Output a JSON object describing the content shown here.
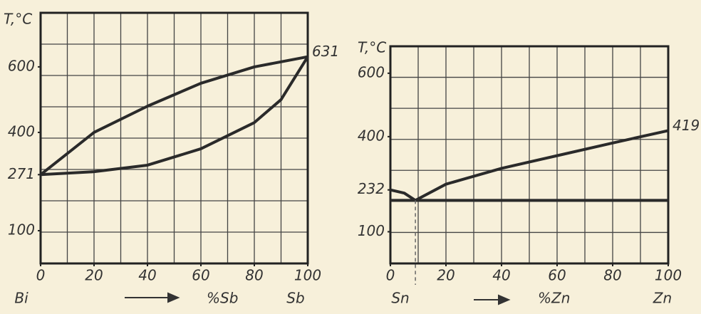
{
  "chart_data": [
    {
      "type": "line",
      "y_label": "T,°C",
      "x_label": "%Sb",
      "components": [
        "Bi",
        "Sb"
      ],
      "annotations": [
        "631"
      ],
      "xlim": [
        0,
        100
      ],
      "xticks": [
        0,
        20,
        40,
        60,
        80,
        100
      ],
      "ylim": [
        0,
        765
      ],
      "yticks": [
        100,
        271,
        400,
        600
      ],
      "grid": true,
      "color": "#2a2a2a",
      "series": [
        {
          "x": [
            0,
            20,
            40,
            60,
            80,
            100
          ],
          "values": [
            271,
            400,
            480,
            550,
            600,
            631
          ]
        },
        {
          "x": [
            0,
            20,
            40,
            60,
            80,
            90,
            100
          ],
          "values": [
            271,
            280,
            300,
            350,
            430,
            500,
            631
          ]
        }
      ]
    },
    {
      "type": "line",
      "y_label": "T,°C",
      "x_label": "%Zn",
      "components": [
        "Sn",
        "Zn"
      ],
      "annotations": [
        "419"
      ],
      "xlim": [
        0,
        100
      ],
      "xticks": [
        0,
        20,
        40,
        60,
        80,
        100
      ],
      "ylim": [
        0,
        685
      ],
      "yticks": [
        100,
        232,
        400,
        600
      ],
      "grid": true,
      "color": "#2a2a2a",
      "dashed_drop": true,
      "series": [
        {
          "x": [
            0,
            5,
            9,
            20,
            40,
            60,
            80,
            100
          ],
          "values": [
            232,
            222,
            199,
            250,
            300,
            340,
            380,
            419
          ]
        },
        {
          "x": [
            0,
            100
          ],
          "values": [
            199,
            199
          ]
        }
      ]
    }
  ]
}
